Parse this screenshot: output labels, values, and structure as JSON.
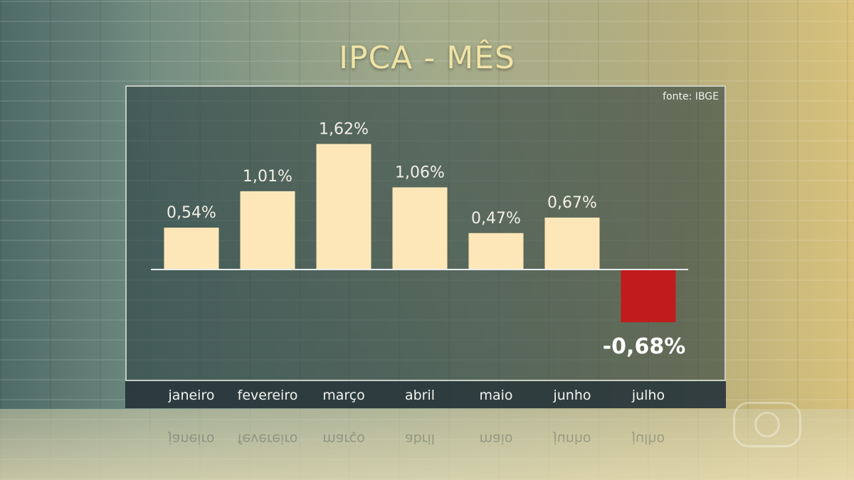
{
  "chart_data": {
    "type": "bar",
    "title": "IPCA - MÊS",
    "source": "fonte: IBGE",
    "categories": [
      "janeiro",
      "fevereiro",
      "março",
      "abril",
      "maio",
      "junho",
      "julho"
    ],
    "values": [
      0.54,
      1.01,
      1.62,
      1.06,
      0.47,
      0.67,
      -0.68
    ],
    "value_labels": [
      "0,54%",
      "1,01%",
      "1,62%",
      "1,06%",
      "0,47%",
      "0,67%",
      "-0,68%"
    ],
    "ylim": [
      -0.68,
      1.62
    ],
    "grid": false,
    "colors": {
      "positive": "#fde7b8",
      "negative": "#c01c1c",
      "axis": "#e8ecef",
      "label": "#f3f0e6"
    }
  }
}
